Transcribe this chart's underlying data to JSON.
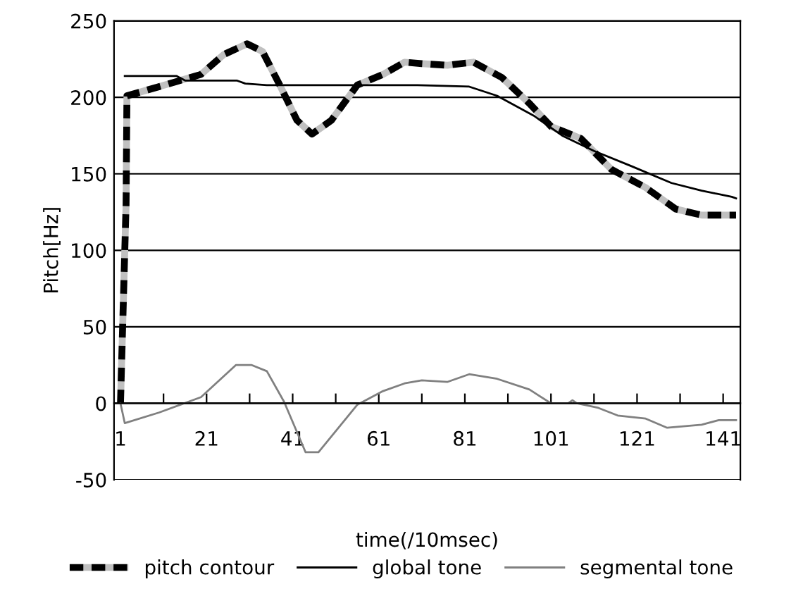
{
  "chart_data": {
    "type": "line",
    "xlabel": "time(/10msec)",
    "ylabel": "Pitch[Hz]",
    "xlim": [
      -0.5,
      145
    ],
    "ylim": [
      -50,
      250
    ],
    "xticks": [
      1,
      {
        "value": 11,
        "label": null
      },
      21,
      {
        "value": 31,
        "label": null
      },
      41,
      {
        "value": 51,
        "label": null
      },
      61,
      {
        "value": 71,
        "label": null
      },
      81,
      {
        "value": 91,
        "label": null
      },
      101,
      {
        "value": 111,
        "label": null
      },
      121,
      {
        "value": 131,
        "label": null
      },
      141
    ],
    "yticks": [
      -50,
      0,
      50,
      100,
      150,
      200,
      250
    ],
    "grid": "y",
    "legend": "bottom",
    "series": [
      {
        "name": "pitch contour",
        "color": "#000000",
        "line_style": "dashed",
        "x": [
          1,
          2,
          2.3,
          2.5,
          10,
          19.7,
          25,
          30.4,
          34,
          38,
          42,
          45.5,
          50,
          56,
          62,
          67,
          71,
          77,
          83,
          89.6,
          96,
          101,
          108,
          115,
          123,
          130,
          136,
          144
        ],
        "values": [
          0,
          100,
          130,
          201,
          207,
          215,
          228,
          235,
          230,
          208,
          185,
          176,
          185,
          208,
          215,
          223,
          222,
          221,
          223,
          213,
          196,
          181,
          173,
          153,
          141,
          127,
          123,
          123
        ]
      },
      {
        "name": "global tone",
        "color": "#000000",
        "line_style": "solid",
        "x": [
          2,
          14,
          16,
          28,
          30,
          35,
          70,
          82,
          88.5,
          97,
          103.6,
          111,
          119.7,
          129,
          136,
          143,
          144
        ],
        "values": [
          214,
          214,
          211,
          211,
          209,
          208,
          208,
          207,
          201,
          188,
          175,
          165,
          155,
          144,
          139,
          135,
          134
        ]
      },
      {
        "name": "segmental tone",
        "color": "#808080",
        "line_style": "solid",
        "x": [
          1,
          2,
          10,
          19.7,
          27.8,
          31.5,
          35,
          39,
          44,
          47,
          56,
          62,
          67,
          71,
          77,
          82,
          88.5,
          96,
          101,
          105,
          106,
          107,
          112,
          116.5,
          123,
          128,
          136,
          140,
          144
        ],
        "values": [
          0,
          -13,
          -6,
          4,
          25,
          25,
          21,
          1,
          -32,
          -32,
          -1,
          8,
          13,
          15,
          14,
          19,
          16,
          9,
          0,
          0,
          2,
          0,
          -3,
          -8,
          -10,
          -16,
          -14,
          -11,
          -11
        ]
      }
    ]
  }
}
